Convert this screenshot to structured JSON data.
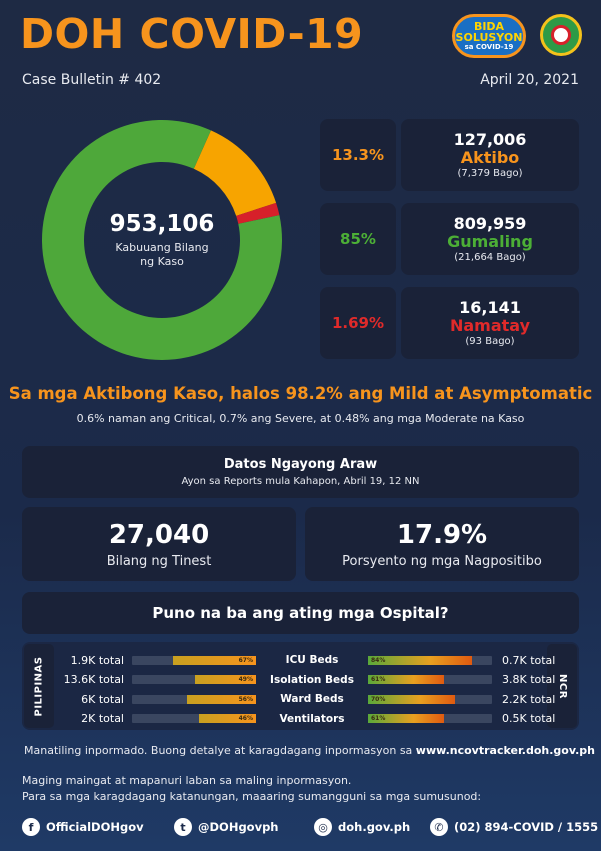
{
  "header": {
    "title": "DOH COVID-19",
    "bulletin": "Case Bulletin # 402",
    "date": "April 20, 2021",
    "logo_bida_line1": "BIDA",
    "logo_bida_line2": "SOLUSYON",
    "logo_bida_line3": "sa COVID-19"
  },
  "summary": {
    "total": "953,106",
    "total_label": "Kabuuang Bilang ng Kaso",
    "active": {
      "pct": "13.3%",
      "value": "127,006",
      "label": "Aktibo",
      "new": "(7,379 Bago)",
      "color": "#f7941d"
    },
    "recovered": {
      "pct": "85%",
      "value": "809,959",
      "label": "Gumaling",
      "new": "(21,664 Bago)",
      "color": "#4caf36"
    },
    "deaths": {
      "pct": "1.69%",
      "value": "16,141",
      "label": "Namatay",
      "new": "(93 Bago)",
      "color": "#e02a2a"
    }
  },
  "chart_data": {
    "type": "pie",
    "categories": [
      "Aktibo",
      "Gumaling",
      "Namatay"
    ],
    "values": [
      13.3,
      85,
      1.69
    ],
    "colors": [
      "#f7a400",
      "#4ea83a",
      "#d7202a"
    ]
  },
  "headline": {
    "main": "Sa mga Aktibong Kaso, halos 98.2% ang Mild at Asymptomatic",
    "sub": "0.6% naman ang Critical, 0.7% ang Severe, at 0.48% ang mga Moderate na Kaso"
  },
  "today": {
    "title": "Datos Ngayong Araw",
    "subtitle": "Ayon sa Reports mula Kahapon, Abril 19, 12 NN",
    "tests_value": "27,040",
    "tests_label": "Bilang ng Tinest",
    "positivity_value": "17.9%",
    "positivity_label": "Porsyento ng mga Nagpositibo"
  },
  "hospitals": {
    "title": "Puno na ba ang ating mga Ospital?",
    "left_tab": "PILIPINAS",
    "right_tab": "NCR",
    "rows": [
      {
        "label": "ICU Beds",
        "ph_total": "1.9K total",
        "ph_pct": "67%",
        "ph_value": 67,
        "ncr_pct": "84%",
        "ncr_value": 84,
        "ncr_total": "0.7K total"
      },
      {
        "label": "Isolation Beds",
        "ph_total": "13.6K total",
        "ph_pct": "49%",
        "ph_value": 49,
        "ncr_pct": "61%",
        "ncr_value": 61,
        "ncr_total": "3.8K total"
      },
      {
        "label": "Ward Beds",
        "ph_total": "6K total",
        "ph_pct": "56%",
        "ph_value": 56,
        "ncr_pct": "70%",
        "ncr_value": 70,
        "ncr_total": "2.2K total"
      },
      {
        "label": "Ventilators",
        "ph_total": "2K total",
        "ph_pct": "46%",
        "ph_value": 46,
        "ncr_pct": "61%",
        "ncr_value": 61,
        "ncr_total": "0.5K total"
      }
    ]
  },
  "footer": {
    "info_text": "Manatiling inpormado. Buong detalye at karagdagang inpormasyon sa ",
    "info_link": "www.ncovtracker.doh.gov.ph",
    "warning_line1": "Maging maingat at mapanuri laban sa maling inpormasyon.",
    "warning_line2": "Para sa mga karagdagang katanungan, maaaring sumangguni sa mga sumusunod:",
    "facebook": "OfficialDOHgov",
    "twitter": "@DOHgovph",
    "website": "doh.gov.ph",
    "phone": "(02) 894-COVID / 1555"
  }
}
